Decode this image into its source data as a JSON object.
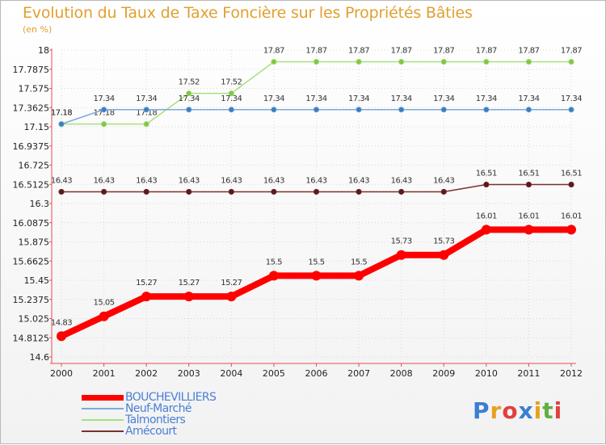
{
  "title": "Evolution du Taux de Taxe Foncière sur les Propriétés Bâties",
  "subtitle": "(en %)",
  "logo": {
    "letters": [
      "P",
      "r",
      "o",
      "x",
      "i",
      "t",
      "i"
    ],
    "colors": [
      "#3a7fd0",
      "#e8a020",
      "#e04040",
      "#3a7fd0",
      "#e8a020",
      "#60b040",
      "#e04040"
    ]
  },
  "chart_data": {
    "type": "line",
    "x": [
      "2000",
      "2001",
      "2002",
      "2003",
      "2004",
      "2005",
      "2006",
      "2007",
      "2008",
      "2009",
      "2010",
      "2011",
      "2012"
    ],
    "ylim": [
      14.6,
      18
    ],
    "yticks": [
      "18",
      "17.7875",
      "17.575",
      "17.3625",
      "17.15",
      "16.9375",
      "16.725",
      "16.5125",
      "16.3",
      "16.0875",
      "15.875",
      "15.6625",
      "15.45",
      "15.2375",
      "15.025",
      "14.8125",
      "14.6"
    ],
    "series": [
      {
        "name": "BOUCHEVILLIERS",
        "color": "#ff0000",
        "values": [
          14.83,
          15.05,
          15.27,
          15.27,
          15.27,
          15.5,
          15.5,
          15.5,
          15.73,
          15.73,
          16.01,
          16.01,
          16.01
        ],
        "labels": [
          "14.83",
          "15.05",
          "15.27",
          "15.27",
          "15.27",
          "15.5",
          "15.5",
          "15.5",
          "15.73",
          "15.73",
          "16.01",
          "16.01",
          "16.01"
        ]
      },
      {
        "name": "Neuf-Marché",
        "color": "#7aaad8",
        "values": [
          17.18,
          17.34,
          17.34,
          17.34,
          17.34,
          17.34,
          17.34,
          17.34,
          17.34,
          17.34,
          17.34,
          17.34,
          17.34
        ],
        "labels": [
          "17.18",
          "17.34",
          "17.34",
          "17.34",
          "17.34",
          "17.34",
          "17.34",
          "17.34",
          "17.34",
          "17.34",
          "17.34",
          "17.34",
          "17.34"
        ]
      },
      {
        "name": "Talmontiers",
        "color": "#a8e080",
        "values": [
          17.18,
          17.18,
          17.18,
          17.52,
          17.52,
          17.87,
          17.87,
          17.87,
          17.87,
          17.87,
          17.87,
          17.87,
          17.87
        ],
        "labels": [
          "17.18",
          "17.18",
          "17.18",
          "17.52",
          "17.52",
          "17.87",
          "17.87",
          "17.87",
          "17.87",
          "17.87",
          "17.87",
          "17.87",
          "17.87"
        ]
      },
      {
        "name": "Amécourt",
        "color": "#7a3030",
        "values": [
          16.43,
          16.43,
          16.43,
          16.43,
          16.43,
          16.43,
          16.43,
          16.43,
          16.43,
          16.43,
          16.51,
          16.51,
          16.51
        ],
        "labels": [
          "16.43",
          "16.43",
          "16.43",
          "16.43",
          "16.43",
          "16.43",
          "16.43",
          "16.43",
          "16.43",
          "16.43",
          "16.51",
          "16.51",
          "16.51"
        ]
      }
    ]
  }
}
